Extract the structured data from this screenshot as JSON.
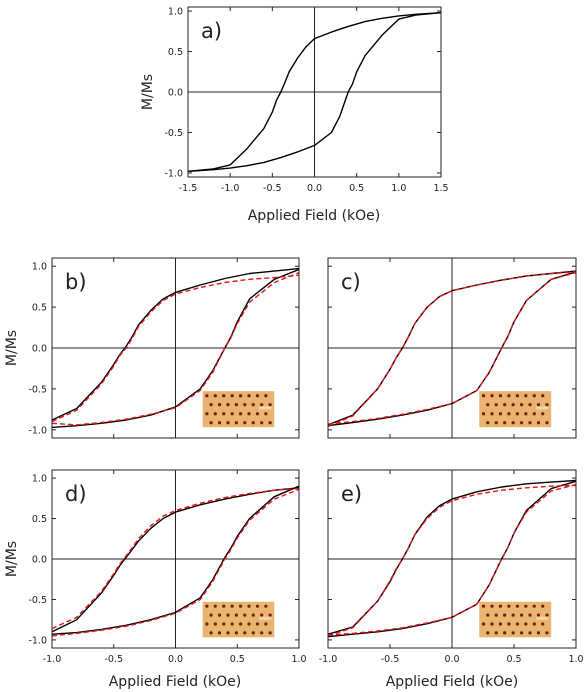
{
  "figure": {
    "curve_color": "#000000",
    "fit_color": "#e8141c",
    "inset_colors": {
      "background": "#e9b470",
      "dot": "#6e1f08"
    }
  },
  "chart_data": [
    {
      "id": "a",
      "type": "line",
      "panel_label": "a)",
      "xlabel": "Applied Field (kOe)",
      "ylabel": "M/Ms",
      "xlim": [
        -1.5,
        1.5
      ],
      "ylim": [
        -1.05,
        1.05
      ],
      "xticks": [
        "-1.5",
        "-1.0",
        "-0.5",
        "0.0",
        "0.5",
        "1.0",
        "1.5"
      ],
      "yticks": [
        "-1.0",
        "-0.5",
        "0.0",
        "0.5",
        "1.0"
      ],
      "inset": false,
      "series": [
        {
          "x": [
            -1.5,
            -1.2,
            -1.0,
            -0.8,
            -0.6,
            -0.5,
            -0.45,
            -0.4,
            -0.35,
            -0.3,
            -0.2,
            -0.1,
            0.0,
            0.2,
            0.4,
            0.6,
            0.8,
            1.0,
            1.2,
            1.5
          ],
          "y": [
            -0.98,
            -0.95,
            -0.9,
            -0.7,
            -0.45,
            -0.25,
            -0.1,
            0.0,
            0.12,
            0.25,
            0.42,
            0.56,
            0.66,
            0.74,
            0.81,
            0.87,
            0.91,
            0.94,
            0.96,
            0.98
          ]
        },
        {
          "x": [
            -1.5,
            -1.2,
            -1.0,
            -0.8,
            -0.6,
            -0.4,
            -0.2,
            0.0,
            0.2,
            0.3,
            0.35,
            0.4,
            0.45,
            0.5,
            0.6,
            0.8,
            1.0,
            1.2,
            1.5
          ],
          "y": [
            -0.98,
            -0.96,
            -0.94,
            -0.91,
            -0.87,
            -0.81,
            -0.74,
            -0.66,
            -0.5,
            -0.3,
            -0.15,
            0.0,
            0.1,
            0.25,
            0.45,
            0.7,
            0.9,
            0.95,
            0.98
          ]
        }
      ]
    },
    {
      "id": "b",
      "type": "line",
      "panel_label": "b)",
      "xlabel": "",
      "ylabel": "M/Ms",
      "xlim": [
        -1.0,
        1.0
      ],
      "ylim": [
        -1.1,
        1.1
      ],
      "xticks": [],
      "yticks": [
        "-1.0",
        "-0.5",
        "0.0",
        "0.5",
        "1.0"
      ],
      "inset": true,
      "series": [
        {
          "x": [
            -1.0,
            -0.8,
            -0.6,
            -0.5,
            -0.45,
            -0.4,
            -0.35,
            -0.3,
            -0.2,
            -0.1,
            0.0,
            0.2,
            0.4,
            0.6,
            0.8,
            1.0
          ],
          "y": [
            -0.88,
            -0.74,
            -0.42,
            -0.2,
            -0.08,
            0.02,
            0.14,
            0.28,
            0.46,
            0.6,
            0.68,
            0.77,
            0.85,
            0.91,
            0.94,
            0.97
          ]
        },
        {
          "x": [
            -1.0,
            -0.8,
            -0.6,
            -0.4,
            -0.2,
            0.0,
            0.2,
            0.3,
            0.35,
            0.4,
            0.45,
            0.5,
            0.6,
            0.8,
            1.0
          ],
          "y": [
            -0.97,
            -0.95,
            -0.92,
            -0.88,
            -0.82,
            -0.72,
            -0.5,
            -0.28,
            -0.14,
            0.0,
            0.14,
            0.32,
            0.6,
            0.84,
            0.96
          ]
        }
      ],
      "fit": [
        {
          "x": [
            -1.0,
            -0.8,
            -0.6,
            -0.5,
            -0.45,
            -0.4,
            -0.35,
            -0.3,
            -0.2,
            -0.1,
            0.0,
            0.2,
            0.4,
            0.6,
            0.8,
            1.0
          ],
          "y": [
            -0.9,
            -0.76,
            -0.44,
            -0.22,
            -0.09,
            0.0,
            0.12,
            0.26,
            0.44,
            0.58,
            0.66,
            0.74,
            0.8,
            0.84,
            0.86,
            0.89
          ]
        },
        {
          "x": [
            -1.0,
            -0.8,
            -0.6,
            -0.4,
            -0.2,
            0.0,
            0.2,
            0.3,
            0.35,
            0.4,
            0.45,
            0.5,
            0.6,
            0.8,
            1.0
          ],
          "y": [
            -0.92,
            -0.94,
            -0.91,
            -0.87,
            -0.81,
            -0.73,
            -0.52,
            -0.3,
            -0.15,
            0.0,
            0.13,
            0.3,
            0.56,
            0.8,
            0.92
          ]
        }
      ]
    },
    {
      "id": "c",
      "type": "line",
      "panel_label": "c)",
      "xlabel": "",
      "ylabel": "",
      "xlim": [
        -1.0,
        1.0
      ],
      "ylim": [
        -1.1,
        1.1
      ],
      "xticks": [],
      "yticks": [],
      "inset": true,
      "series": [
        {
          "x": [
            -1.0,
            -0.8,
            -0.6,
            -0.5,
            -0.45,
            -0.4,
            -0.35,
            -0.3,
            -0.2,
            -0.1,
            0.0,
            0.2,
            0.4,
            0.6,
            0.8,
            1.0
          ],
          "y": [
            -0.94,
            -0.82,
            -0.5,
            -0.26,
            -0.12,
            0.0,
            0.14,
            0.3,
            0.5,
            0.63,
            0.7,
            0.77,
            0.83,
            0.88,
            0.91,
            0.94
          ]
        },
        {
          "x": [
            -1.0,
            -0.8,
            -0.6,
            -0.4,
            -0.2,
            0.0,
            0.2,
            0.3,
            0.35,
            0.4,
            0.45,
            0.5,
            0.6,
            0.8,
            1.0
          ],
          "y": [
            -0.95,
            -0.91,
            -0.87,
            -0.82,
            -0.76,
            -0.68,
            -0.52,
            -0.3,
            -0.15,
            0.0,
            0.14,
            0.32,
            0.58,
            0.84,
            0.93
          ]
        }
      ],
      "fit": [
        {
          "x": [
            -1.0,
            -0.8,
            -0.6,
            -0.5,
            -0.45,
            -0.4,
            -0.35,
            -0.3,
            -0.2,
            -0.1,
            0.0,
            0.2,
            0.4,
            0.6,
            0.8,
            1.0
          ],
          "y": [
            -0.96,
            -0.83,
            -0.5,
            -0.26,
            -0.12,
            0.0,
            0.14,
            0.3,
            0.5,
            0.63,
            0.7,
            0.77,
            0.83,
            0.88,
            0.91,
            0.93
          ]
        },
        {
          "x": [
            -1.0,
            -0.8,
            -0.6,
            -0.4,
            -0.2,
            0.0,
            0.2,
            0.3,
            0.35,
            0.4,
            0.45,
            0.5,
            0.6,
            0.8,
            1.0
          ],
          "y": [
            -0.93,
            -0.9,
            -0.86,
            -0.81,
            -0.75,
            -0.68,
            -0.52,
            -0.3,
            -0.15,
            0.0,
            0.14,
            0.32,
            0.58,
            0.84,
            0.92
          ]
        }
      ]
    },
    {
      "id": "d",
      "type": "line",
      "panel_label": "d)",
      "xlabel": "Applied Field (kOe)",
      "ylabel": "M/Ms",
      "xlim": [
        -1.0,
        1.0
      ],
      "ylim": [
        -1.1,
        1.1
      ],
      "xticks": [
        "-1.0",
        "-0.5",
        "0.0",
        "0.5",
        "1.0"
      ],
      "yticks": [
        "-1.0",
        "-0.5",
        "0.0",
        "0.5",
        "1.0"
      ],
      "inset": true,
      "series": [
        {
          "x": [
            -1.0,
            -0.8,
            -0.6,
            -0.5,
            -0.45,
            -0.4,
            -0.35,
            -0.3,
            -0.2,
            -0.1,
            0.0,
            0.2,
            0.4,
            0.6,
            0.8,
            1.0
          ],
          "y": [
            -0.9,
            -0.75,
            -0.42,
            -0.2,
            -0.08,
            0.02,
            0.12,
            0.22,
            0.38,
            0.5,
            0.58,
            0.67,
            0.74,
            0.8,
            0.85,
            0.88
          ]
        },
        {
          "x": [
            -1.0,
            -0.8,
            -0.6,
            -0.4,
            -0.2,
            0.0,
            0.2,
            0.3,
            0.35,
            0.4,
            0.45,
            0.5,
            0.6,
            0.8,
            1.0
          ],
          "y": [
            -0.93,
            -0.91,
            -0.87,
            -0.82,
            -0.75,
            -0.66,
            -0.48,
            -0.26,
            -0.12,
            0.02,
            0.14,
            0.28,
            0.5,
            0.77,
            0.9
          ]
        }
      ],
      "fit": [
        {
          "x": [
            -1.0,
            -0.8,
            -0.6,
            -0.5,
            -0.45,
            -0.4,
            -0.35,
            -0.3,
            -0.2,
            -0.1,
            0.0,
            0.2,
            0.4,
            0.6,
            0.8,
            1.0
          ],
          "y": [
            -0.86,
            -0.72,
            -0.4,
            -0.18,
            -0.06,
            0.04,
            0.14,
            0.25,
            0.41,
            0.53,
            0.6,
            0.69,
            0.76,
            0.81,
            0.85,
            0.87
          ]
        },
        {
          "x": [
            -1.0,
            -0.8,
            -0.6,
            -0.4,
            -0.2,
            0.0,
            0.2,
            0.3,
            0.35,
            0.4,
            0.45,
            0.5,
            0.6,
            0.8,
            1.0
          ],
          "y": [
            -0.95,
            -0.92,
            -0.88,
            -0.83,
            -0.76,
            -0.67,
            -0.5,
            -0.28,
            -0.14,
            0.0,
            0.12,
            0.26,
            0.48,
            0.74,
            0.86
          ]
        }
      ]
    },
    {
      "id": "e",
      "type": "line",
      "panel_label": "e)",
      "xlabel": "Applied Field (kOe)",
      "ylabel": "",
      "xlim": [
        -1.0,
        1.0
      ],
      "ylim": [
        -1.1,
        1.1
      ],
      "xticks": [
        "-1.0",
        "-0.5",
        "0.0",
        "0.5",
        "1.0"
      ],
      "yticks": [],
      "inset": true,
      "series": [
        {
          "x": [
            -1.0,
            -0.8,
            -0.6,
            -0.5,
            -0.45,
            -0.4,
            -0.35,
            -0.3,
            -0.2,
            -0.1,
            0.0,
            0.2,
            0.4,
            0.6,
            0.8,
            1.0
          ],
          "y": [
            -0.93,
            -0.84,
            -0.52,
            -0.28,
            -0.13,
            0.0,
            0.14,
            0.3,
            0.52,
            0.66,
            0.74,
            0.83,
            0.89,
            0.93,
            0.95,
            0.97
          ]
        },
        {
          "x": [
            -1.0,
            -0.8,
            -0.6,
            -0.4,
            -0.2,
            0.0,
            0.2,
            0.3,
            0.35,
            0.4,
            0.45,
            0.5,
            0.6,
            0.8,
            1.0
          ],
          "y": [
            -0.96,
            -0.93,
            -0.9,
            -0.86,
            -0.8,
            -0.72,
            -0.56,
            -0.32,
            -0.16,
            0.0,
            0.14,
            0.32,
            0.6,
            0.87,
            0.96
          ]
        }
      ],
      "fit": [
        {
          "x": [
            -1.0,
            -0.8,
            -0.6,
            -0.5,
            -0.45,
            -0.4,
            -0.35,
            -0.3,
            -0.2,
            -0.1,
            0.0,
            0.2,
            0.4,
            0.6,
            0.8,
            1.0
          ],
          "y": [
            -0.95,
            -0.85,
            -0.52,
            -0.27,
            -0.12,
            0.0,
            0.14,
            0.3,
            0.5,
            0.64,
            0.72,
            0.8,
            0.85,
            0.88,
            0.9,
            0.91
          ]
        },
        {
          "x": [
            -1.0,
            -0.8,
            -0.6,
            -0.4,
            -0.2,
            0.0,
            0.2,
            0.3,
            0.35,
            0.4,
            0.45,
            0.5,
            0.6,
            0.8,
            1.0
          ],
          "y": [
            -0.94,
            -0.92,
            -0.89,
            -0.85,
            -0.79,
            -0.72,
            -0.56,
            -0.32,
            -0.16,
            0.0,
            0.14,
            0.32,
            0.58,
            0.84,
            0.92
          ]
        }
      ]
    }
  ]
}
